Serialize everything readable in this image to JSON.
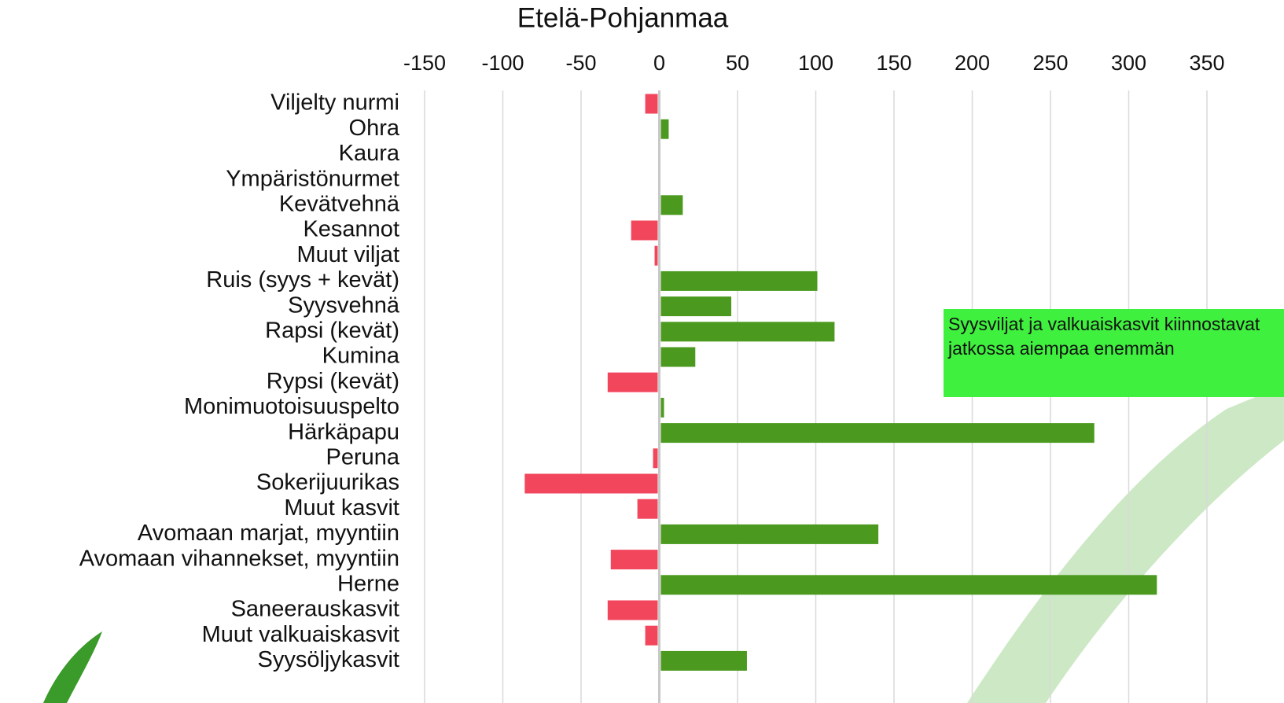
{
  "chart_data": {
    "type": "barh",
    "title": "Etelä-Pohjanmaa",
    "categories": [
      "Viljelty nurmi",
      "Ohra",
      "Kaura",
      "Ympäristönurmet",
      "Kevätvehnä",
      "Kesannot",
      "Muut viljat",
      "Ruis (syys + kevät)",
      "Syysvehnä",
      "Rapsi (kevät)",
      "Kumina",
      "Rypsi (kevät)",
      "Monimuotoisuuspelto",
      "Härkäpapu",
      "Peruna",
      "Sokerijuurikas",
      "Muut kasvit",
      "Avomaan marjat, myyntiin",
      "Avomaan vihannekset, myyntiin",
      "Herne",
      "Saneerauskasvit",
      "Muut valkuaiskasvit",
      "Syysöljykasvit"
    ],
    "values": [
      -8,
      5,
      0,
      0,
      14,
      -17,
      -2,
      100,
      45,
      111,
      22,
      -32,
      2,
      277,
      -3,
      -85,
      -13,
      139,
      -30,
      317,
      -32,
      -8,
      55
    ],
    "positive_color": "#4b9a1f",
    "negative_color": "#f2465c",
    "xlim": [
      -150,
      350
    ],
    "xticks": [
      -150,
      -100,
      -50,
      0,
      50,
      100,
      150,
      200,
      250,
      300,
      350
    ],
    "grid": true,
    "annotation": "Syysviljat ja valkuaiskasvit kiinnostavat jatkossa aiempaa enemmän"
  }
}
